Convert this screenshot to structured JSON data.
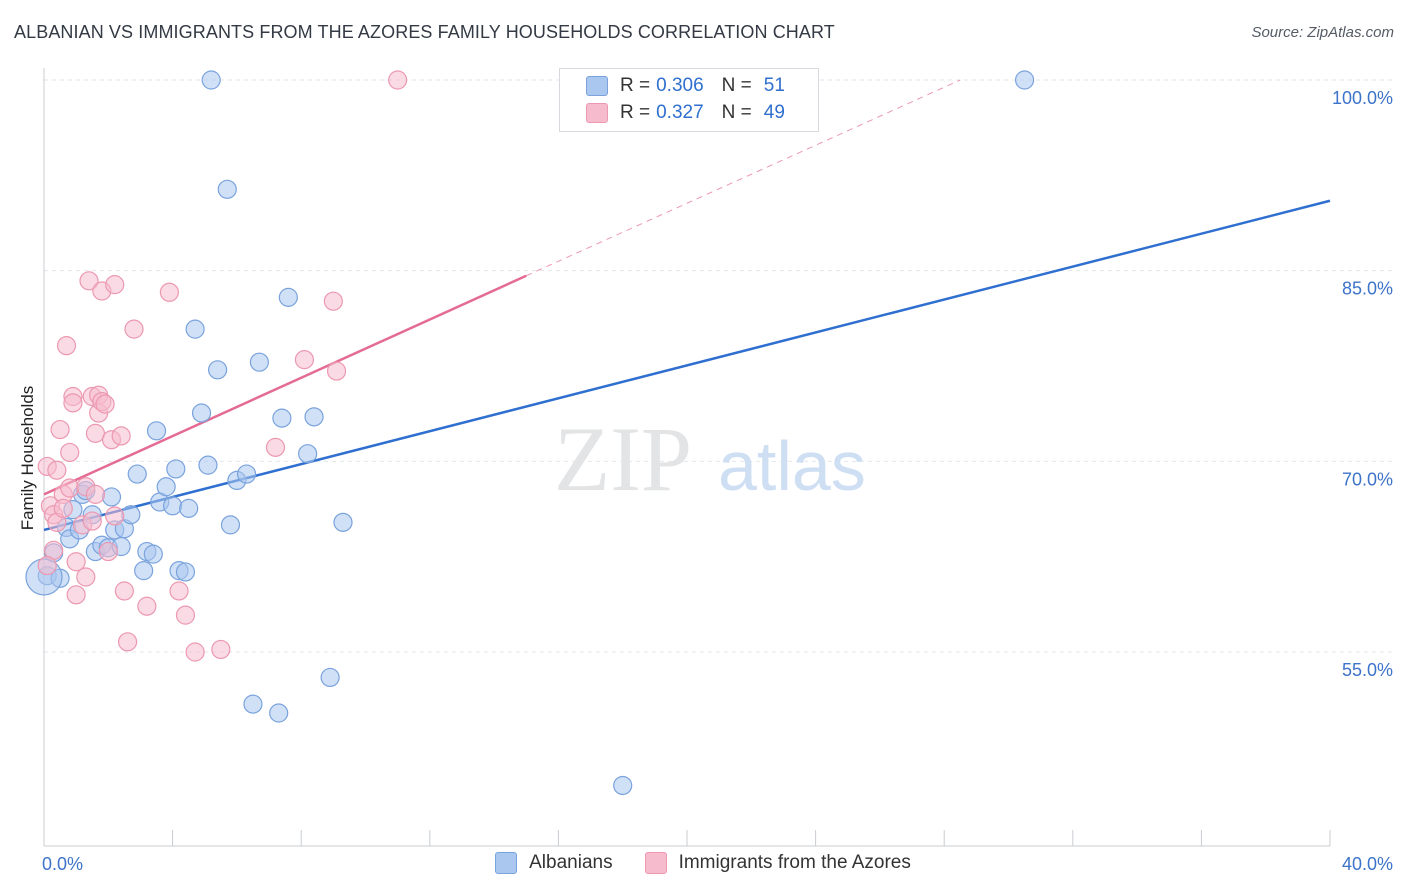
{
  "title": "ALBANIAN VS IMMIGRANTS FROM THE AZORES FAMILY HOUSEHOLDS CORRELATION CHART",
  "source": "Source: ZipAtlas.com",
  "watermark": {
    "part1": "ZIP",
    "part2": "atlas"
  },
  "legend": {
    "series": [
      {
        "r_label": "R =",
        "r_value": "0.306",
        "n_label": "N =",
        "n_value": "51"
      },
      {
        "r_label": "R =",
        "r_value": "0.327",
        "n_label": "N =",
        "n_value": "49"
      }
    ]
  },
  "bottom_legend": {
    "albanians": "Albanians",
    "azores": "Immigrants from the Azores"
  },
  "colors": {
    "blue_fill": "#aac7ef",
    "blue_stroke": "#7aa3dd",
    "blue_line": "#2f6fcf",
    "pink_fill": "#f6bccd",
    "pink_stroke": "#ec98b0",
    "pink_line": "#e46c93",
    "axis_text": "#3d73c9",
    "grid": "#e4e6ea"
  },
  "chart_data": {
    "type": "scatter",
    "title": "ALBANIAN VS IMMIGRANTS FROM THE AZORES FAMILY HOUSEHOLDS CORRELATION CHART",
    "xlabel": "",
    "ylabel": "Family Households",
    "xlim": [
      0,
      40
    ],
    "ylim": [
      40,
      101
    ],
    "x_tick_labels": [
      "0.0%",
      "40.0%"
    ],
    "y_ticks": [
      55,
      70,
      85,
      100
    ],
    "y_tick_labels": [
      "55.0%",
      "70.0%",
      "85.0%",
      "100.0%"
    ],
    "series": [
      {
        "name": "Albanians",
        "color": "#aac7ef",
        "trend": {
          "x": [
            0,
            40
          ],
          "y": [
            64.6,
            90.5
          ],
          "dashed_extension": false
        },
        "points": [
          [
            0.1,
            61.0
          ],
          [
            0.3,
            62.8
          ],
          [
            0.5,
            60.8
          ],
          [
            0.7,
            64.8
          ],
          [
            0.8,
            63.9
          ],
          [
            0.9,
            66.2
          ],
          [
            1.1,
            64.6
          ],
          [
            1.2,
            67.4
          ],
          [
            1.3,
            67.7
          ],
          [
            1.5,
            65.8
          ],
          [
            1.6,
            62.9
          ],
          [
            1.8,
            63.4
          ],
          [
            2.0,
            63.2
          ],
          [
            2.1,
            67.2
          ],
          [
            2.2,
            64.6
          ],
          [
            2.4,
            63.3
          ],
          [
            2.5,
            64.7
          ],
          [
            2.7,
            65.8
          ],
          [
            2.9,
            69.0
          ],
          [
            3.1,
            61.4
          ],
          [
            3.2,
            62.9
          ],
          [
            3.4,
            62.7
          ],
          [
            3.5,
            72.4
          ],
          [
            3.6,
            66.8
          ],
          [
            3.8,
            68.0
          ],
          [
            4.0,
            66.5
          ],
          [
            4.1,
            69.4
          ],
          [
            4.2,
            61.4
          ],
          [
            4.4,
            61.3
          ],
          [
            4.5,
            66.3
          ],
          [
            4.7,
            80.4
          ],
          [
            4.9,
            73.8
          ],
          [
            5.1,
            69.7
          ],
          [
            5.2,
            100.0
          ],
          [
            5.4,
            77.2
          ],
          [
            5.7,
            91.4
          ],
          [
            5.8,
            65.0
          ],
          [
            6.0,
            68.5
          ],
          [
            6.3,
            69.0
          ],
          [
            6.5,
            50.9
          ],
          [
            6.7,
            77.8
          ],
          [
            7.3,
            50.2
          ],
          [
            7.4,
            73.4
          ],
          [
            7.6,
            82.9
          ],
          [
            8.2,
            70.6
          ],
          [
            8.4,
            73.5
          ],
          [
            8.9,
            53.0
          ],
          [
            9.3,
            65.2
          ],
          [
            18.0,
            44.5
          ],
          [
            30.5,
            100.0
          ],
          [
            0.0,
            60.9
          ]
        ]
      },
      {
        "name": "Immigrants from the Azores",
        "color": "#f6bccd",
        "trend": {
          "x": [
            0,
            15
          ],
          "y": [
            67.4,
            84.6
          ],
          "dashed_extension": true,
          "extension_to": [
            28.5,
            100.0
          ]
        },
        "points": [
          [
            0.1,
            69.6
          ],
          [
            0.2,
            66.5
          ],
          [
            0.3,
            65.8
          ],
          [
            0.3,
            63.0
          ],
          [
            0.4,
            69.3
          ],
          [
            0.4,
            65.2
          ],
          [
            0.5,
            72.5
          ],
          [
            0.6,
            67.4
          ],
          [
            0.7,
            79.1
          ],
          [
            0.8,
            70.7
          ],
          [
            0.8,
            67.9
          ],
          [
            0.9,
            75.1
          ],
          [
            0.9,
            74.6
          ],
          [
            1.0,
            62.1
          ],
          [
            1.0,
            59.5
          ],
          [
            1.2,
            65.0
          ],
          [
            1.3,
            68.0
          ],
          [
            1.4,
            84.2
          ],
          [
            1.5,
            65.3
          ],
          [
            1.5,
            75.1
          ],
          [
            1.6,
            72.2
          ],
          [
            1.7,
            75.2
          ],
          [
            1.7,
            73.8
          ],
          [
            1.8,
            83.4
          ],
          [
            1.8,
            74.7
          ],
          [
            1.9,
            74.5
          ],
          [
            2.0,
            62.9
          ],
          [
            2.1,
            71.7
          ],
          [
            2.2,
            65.7
          ],
          [
            2.2,
            83.9
          ],
          [
            2.4,
            72.0
          ],
          [
            2.5,
            59.8
          ],
          [
            2.6,
            55.8
          ],
          [
            2.8,
            80.4
          ],
          [
            3.2,
            58.6
          ],
          [
            3.9,
            83.3
          ],
          [
            4.2,
            59.8
          ],
          [
            4.4,
            57.9
          ],
          [
            4.7,
            55.0
          ],
          [
            5.5,
            55.2
          ],
          [
            7.2,
            71.1
          ],
          [
            8.1,
            78.0
          ],
          [
            9.0,
            82.6
          ],
          [
            9.1,
            77.1
          ],
          [
            11.0,
            100.0
          ],
          [
            1.3,
            60.9
          ],
          [
            0.1,
            61.8
          ],
          [
            1.6,
            67.4
          ],
          [
            0.6,
            66.3
          ]
        ]
      }
    ]
  }
}
